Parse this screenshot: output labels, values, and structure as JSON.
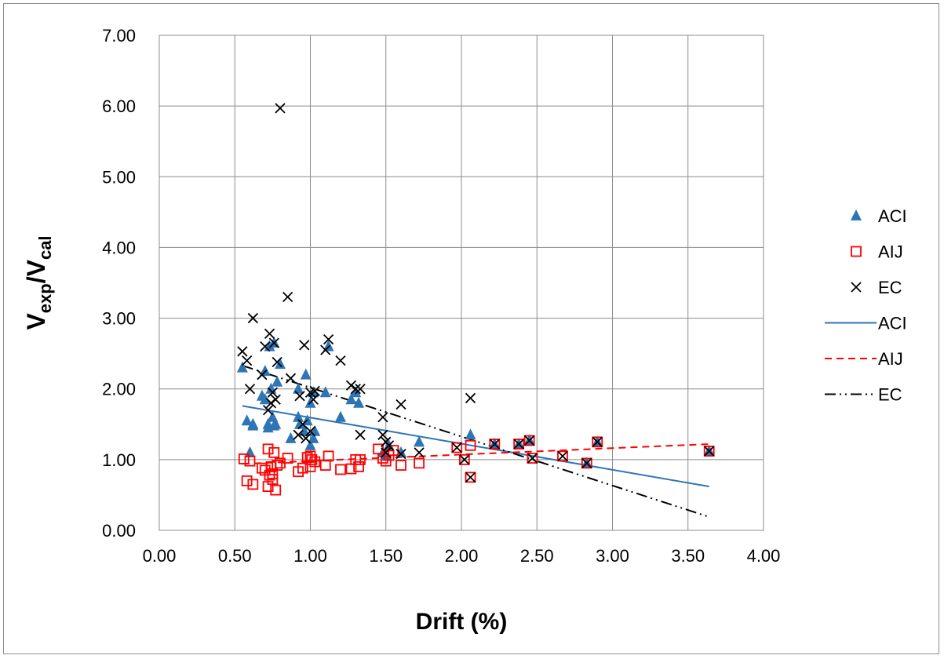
{
  "chart_data": {
    "type": "scatter",
    "title": "",
    "xlabel": "Drift (%)",
    "ylabel": {
      "main1": "V",
      "sub1": "exp",
      "sep": "/",
      "main2": "V",
      "sub2": "cal"
    },
    "xlim": [
      0,
      4
    ],
    "ylim": [
      0,
      7
    ],
    "x_ticks": [
      "0.00",
      "0.50",
      "1.00",
      "1.50",
      "2.00",
      "2.50",
      "3.00",
      "3.50",
      "4.00"
    ],
    "y_ticks": [
      "0.00",
      "1.00",
      "2.00",
      "3.00",
      "4.00",
      "5.00",
      "6.00",
      "7.00"
    ],
    "grid": true,
    "legend_position": "right",
    "colors": {
      "ACI": "#2e75b6",
      "AIJ": "#ff0000",
      "EC": "#000000"
    },
    "series": [
      {
        "name": "ACI",
        "marker": "triangle",
        "points": [
          [
            0.55,
            2.3
          ],
          [
            0.58,
            1.55
          ],
          [
            0.6,
            1.1
          ],
          [
            0.62,
            1.5
          ],
          [
            0.62,
            1.48
          ],
          [
            0.68,
            1.9
          ],
          [
            0.7,
            2.25
          ],
          [
            0.7,
            1.85
          ],
          [
            0.72,
            1.45
          ],
          [
            0.72,
            1.5
          ],
          [
            0.73,
            2.6
          ],
          [
            0.74,
            2.0
          ],
          [
            0.75,
            1.6
          ],
          [
            0.76,
            1.48
          ],
          [
            0.76,
            2.65
          ],
          [
            0.77,
            1.5
          ],
          [
            0.78,
            2.1
          ],
          [
            0.8,
            2.35
          ],
          [
            0.87,
            1.3
          ],
          [
            0.92,
            1.6
          ],
          [
            0.92,
            2.0
          ],
          [
            0.93,
            1.5
          ],
          [
            0.96,
            1.4
          ],
          [
            0.97,
            2.2
          ],
          [
            0.98,
            1.55
          ],
          [
            1.0,
            1.8
          ],
          [
            1.0,
            1.2
          ],
          [
            1.02,
            1.3
          ],
          [
            1.02,
            1.95
          ],
          [
            1.03,
            1.4
          ],
          [
            1.1,
            1.95
          ],
          [
            1.12,
            2.6
          ],
          [
            1.2,
            1.6
          ],
          [
            1.27,
            1.85
          ],
          [
            1.3,
            1.95
          ],
          [
            1.32,
            1.8
          ],
          [
            1.48,
            1.1
          ],
          [
            1.5,
            1.05
          ],
          [
            1.52,
            1.2
          ],
          [
            1.6,
            1.1
          ],
          [
            1.72,
            1.25
          ],
          [
            2.06,
            1.35
          ],
          [
            2.22,
            1.22
          ],
          [
            2.38,
            1.22
          ],
          [
            2.45,
            1.27
          ],
          [
            2.83,
            0.95
          ],
          [
            2.9,
            1.25
          ],
          [
            3.64,
            1.12
          ]
        ]
      },
      {
        "name": "AIJ",
        "marker": "square",
        "points": [
          [
            0.56,
            1.01
          ],
          [
            0.58,
            0.7
          ],
          [
            0.6,
            0.98
          ],
          [
            0.62,
            0.65
          ],
          [
            0.68,
            0.88
          ],
          [
            0.7,
            0.85
          ],
          [
            0.72,
            0.62
          ],
          [
            0.72,
            1.15
          ],
          [
            0.73,
            0.78
          ],
          [
            0.74,
            0.9
          ],
          [
            0.75,
            0.72
          ],
          [
            0.75,
            0.8
          ],
          [
            0.76,
            1.1
          ],
          [
            0.77,
            0.57
          ],
          [
            0.78,
            0.92
          ],
          [
            0.8,
            0.95
          ],
          [
            0.85,
            1.02
          ],
          [
            0.92,
            0.83
          ],
          [
            0.95,
            0.88
          ],
          [
            0.98,
            1.03
          ],
          [
            1.0,
            0.9
          ],
          [
            1.0,
            1.05
          ],
          [
            1.01,
            1.0
          ],
          [
            1.03,
            0.97
          ],
          [
            1.1,
            0.92
          ],
          [
            1.12,
            1.05
          ],
          [
            1.2,
            0.86
          ],
          [
            1.27,
            0.87
          ],
          [
            1.3,
            1.0
          ],
          [
            1.32,
            0.9
          ],
          [
            1.33,
            1.0
          ],
          [
            1.45,
            1.15
          ],
          [
            1.48,
            1.02
          ],
          [
            1.5,
            0.98
          ],
          [
            1.52,
            1.06
          ],
          [
            1.55,
            1.13
          ],
          [
            1.6,
            0.92
          ],
          [
            1.72,
            0.95
          ],
          [
            1.97,
            1.17
          ],
          [
            2.02,
            1.0
          ],
          [
            2.06,
            1.2
          ],
          [
            2.06,
            0.75
          ],
          [
            2.22,
            1.22
          ],
          [
            2.38,
            1.22
          ],
          [
            2.45,
            1.27
          ],
          [
            2.47,
            1.02
          ],
          [
            2.67,
            1.05
          ],
          [
            2.83,
            0.95
          ],
          [
            2.9,
            1.25
          ],
          [
            3.64,
            1.12
          ]
        ]
      },
      {
        "name": "EC",
        "marker": "x",
        "points": [
          [
            0.55,
            2.53
          ],
          [
            0.58,
            2.4
          ],
          [
            0.6,
            2.0
          ],
          [
            0.62,
            3.0
          ],
          [
            0.68,
            2.2
          ],
          [
            0.7,
            2.6
          ],
          [
            0.72,
            1.7
          ],
          [
            0.73,
            2.78
          ],
          [
            0.74,
            1.8
          ],
          [
            0.75,
            1.95
          ],
          [
            0.76,
            2.65
          ],
          [
            0.77,
            1.85
          ],
          [
            0.78,
            2.38
          ],
          [
            0.8,
            5.97
          ],
          [
            0.85,
            3.3
          ],
          [
            0.87,
            2.15
          ],
          [
            0.92,
            1.35
          ],
          [
            0.93,
            1.9
          ],
          [
            0.95,
            1.5
          ],
          [
            0.96,
            2.62
          ],
          [
            0.97,
            1.3
          ],
          [
            1.0,
            1.4
          ],
          [
            1.0,
            1.95
          ],
          [
            1.02,
            1.85
          ],
          [
            1.03,
            1.97
          ],
          [
            1.1,
            2.55
          ],
          [
            1.12,
            2.7
          ],
          [
            1.2,
            2.4
          ],
          [
            1.27,
            2.05
          ],
          [
            1.3,
            2.0
          ],
          [
            1.33,
            2.0
          ],
          [
            1.33,
            1.35
          ],
          [
            1.48,
            1.6
          ],
          [
            1.48,
            1.35
          ],
          [
            1.5,
            1.25
          ],
          [
            1.5,
            1.1
          ],
          [
            1.52,
            1.2
          ],
          [
            1.6,
            1.78
          ],
          [
            1.6,
            1.08
          ],
          [
            1.72,
            1.1
          ],
          [
            1.97,
            1.17
          ],
          [
            2.02,
            1.0
          ],
          [
            2.06,
            1.87
          ],
          [
            2.06,
            0.75
          ],
          [
            2.22,
            1.22
          ],
          [
            2.38,
            1.22
          ],
          [
            2.45,
            1.27
          ],
          [
            2.47,
            1.02
          ],
          [
            2.67,
            1.05
          ],
          [
            2.83,
            0.95
          ],
          [
            2.9,
            1.25
          ],
          [
            3.64,
            1.12
          ]
        ]
      },
      {
        "name": "ACI",
        "kind": "trendline",
        "dash": "solid",
        "x": [
          0.55,
          3.64
        ],
        "y": [
          1.76,
          0.62
        ]
      },
      {
        "name": "AIJ",
        "kind": "trendline",
        "dash": "dash",
        "x": [
          0.55,
          3.64
        ],
        "y": [
          0.94,
          1.22
        ]
      },
      {
        "name": "EC",
        "kind": "trendline",
        "dash": "dashdotdot",
        "x": [
          0.55,
          3.64
        ],
        "y": [
          2.33,
          0.19
        ]
      }
    ]
  }
}
